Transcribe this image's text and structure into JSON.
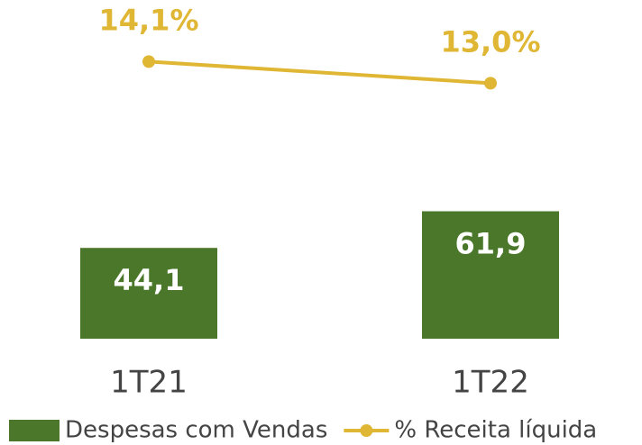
{
  "chart_data": {
    "type": "bar",
    "categories": [
      "1T21",
      "1T22"
    ],
    "series": [
      {
        "name": "Despesas com Vendas",
        "type": "bar",
        "color": "#4a7729",
        "values": [
          44.1,
          61.9
        ],
        "value_labels": [
          "44,1",
          "61,9"
        ]
      },
      {
        "name": "% Receita líquida",
        "type": "line",
        "axis": "y2",
        "color": "#dfb735",
        "values": [
          14.1,
          13.0
        ],
        "value_labels": [
          "14,1%",
          "13,0%"
        ]
      }
    ],
    "ylim": [
      0,
      147
    ],
    "y2lim": [
      0,
      15.4
    ],
    "legend": "bottom"
  }
}
